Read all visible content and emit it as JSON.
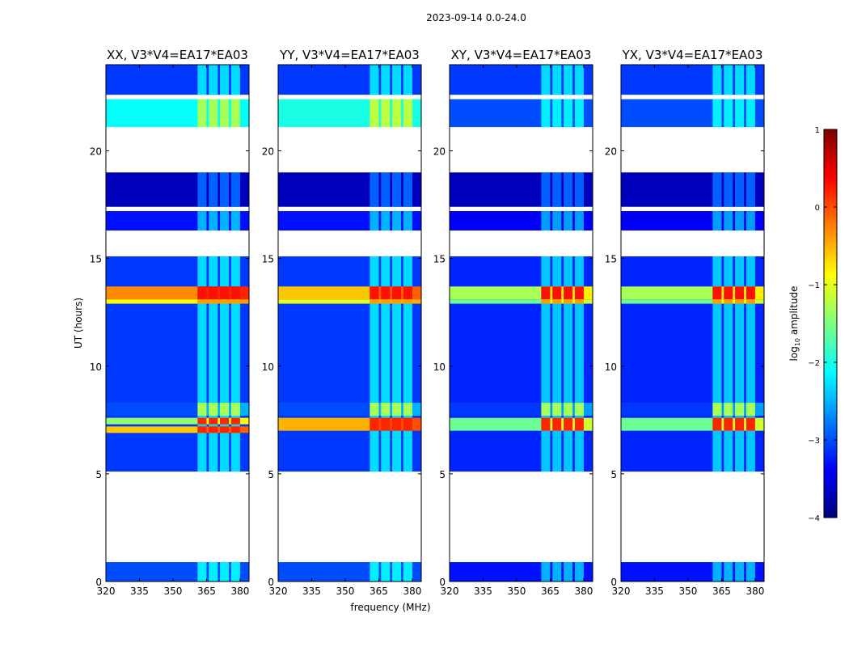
{
  "figure_title": "2023-09-14 0.0-24.0",
  "colorbar": {
    "label_prefix": "log",
    "label_sub": "10",
    "label_suffix": " amplitude",
    "range": [
      -4,
      1
    ],
    "ticks": [
      1,
      0,
      -1,
      -2,
      -3,
      -4
    ],
    "tick_labels": [
      "1",
      "0",
      "−1",
      "−2",
      "−3",
      "−4"
    ],
    "colormap": "jet",
    "colors": [
      "#00007f",
      "#0000ff",
      "#007fff",
      "#00ffff",
      "#7fff7f",
      "#ffff00",
      "#ff7f00",
      "#ff0000",
      "#7f0000"
    ]
  },
  "chart_data": [
    {
      "type": "heatmap",
      "title": "XX, V3*V4=EA17*EA03",
      "xlabel": "",
      "ylabel": "UT (hours)",
      "xlim": [
        320,
        384
      ],
      "ylim": [
        0,
        24
      ],
      "xticks": [
        320,
        335,
        350,
        365,
        380
      ],
      "xtick_labels": [
        "320",
        "335",
        "350",
        "365",
        "380"
      ],
      "yticks": [
        0,
        5,
        10,
        15,
        20
      ],
      "ytick_labels": [
        "0",
        "5",
        "10",
        "15",
        "20"
      ],
      "channel_columns_mhz": [
        [
          361,
          365
        ],
        [
          366,
          370
        ],
        [
          371,
          375
        ],
        [
          376,
          380
        ]
      ],
      "bands": [
        {
          "t0": 0.0,
          "t1": 0.9,
          "level": -3.0
        },
        {
          "t0": 5.1,
          "t1": 15.1,
          "level": -3.1
        },
        {
          "t0": 16.3,
          "t1": 17.2,
          "level": -3.3
        },
        {
          "t0": 17.4,
          "t1": 19.0,
          "level": -3.7
        },
        {
          "t0": 21.1,
          "t1": 22.4,
          "level": -2.1
        },
        {
          "t0": 22.6,
          "t1": 24.0,
          "level": -3.1
        }
      ],
      "strong_rows": [
        {
          "t0": 13.1,
          "t1": 13.7,
          "level": -0.3,
          "channel_level": 0.3
        },
        {
          "t0": 12.9,
          "t1": 13.1,
          "level": -0.9,
          "channel_level": -0.4
        },
        {
          "t0": 6.9,
          "t1": 7.2,
          "level": -0.6,
          "channel_level": 0.2
        },
        {
          "t0": 7.3,
          "t1": 7.6,
          "level": -1.4,
          "channel_level": 0.2
        },
        {
          "t0": 7.7,
          "t1": 8.3,
          "level": -3.0,
          "channel_level": -1.3
        }
      ],
      "gaps": [
        [
          0.9,
          5.1
        ],
        [
          15.1,
          16.3
        ],
        [
          19.0,
          21.1
        ],
        [
          22.4,
          22.6
        ]
      ]
    },
    {
      "type": "heatmap",
      "title": "YY, V3*V4=EA17*EA03",
      "xlabel": "frequency (MHz)",
      "ylabel": "",
      "xlim": [
        320,
        384
      ],
      "ylim": [
        0,
        24
      ],
      "xticks": [
        320,
        335,
        350,
        365,
        380
      ],
      "xtick_labels": [
        "320",
        "335",
        "350",
        "365",
        "380"
      ],
      "yticks": [
        0,
        5,
        10,
        15,
        20
      ],
      "ytick_labels": [
        "0",
        "5",
        "10",
        "15",
        "20"
      ],
      "channel_columns_mhz": [
        [
          361,
          365
        ],
        [
          366,
          370
        ],
        [
          371,
          375
        ],
        [
          376,
          380
        ]
      ],
      "bands": [
        {
          "t0": 0.0,
          "t1": 0.9,
          "level": -3.0
        },
        {
          "t0": 5.1,
          "t1": 15.1,
          "level": -3.1
        },
        {
          "t0": 16.3,
          "t1": 17.2,
          "level": -3.3
        },
        {
          "t0": 17.4,
          "t1": 19.0,
          "level": -3.7
        },
        {
          "t0": 21.1,
          "t1": 22.4,
          "level": -2.0
        },
        {
          "t0": 22.6,
          "t1": 24.0,
          "level": -3.1
        }
      ],
      "strong_rows": [
        {
          "t0": 13.1,
          "t1": 13.7,
          "level": -0.6,
          "channel_level": 0.3
        },
        {
          "t0": 12.9,
          "t1": 13.1,
          "level": -1.0,
          "channel_level": -0.4
        },
        {
          "t0": 7.0,
          "t1": 7.6,
          "level": -0.5,
          "channel_level": 0.2
        },
        {
          "t0": 7.7,
          "t1": 8.3,
          "level": -3.0,
          "channel_level": -1.3
        }
      ],
      "gaps": [
        [
          0.9,
          5.1
        ],
        [
          15.1,
          16.3
        ],
        [
          19.0,
          21.1
        ],
        [
          22.4,
          22.6
        ]
      ]
    },
    {
      "type": "heatmap",
      "title": "XY, V3*V4=EA17*EA03",
      "xlabel": "",
      "ylabel": "",
      "xlim": [
        320,
        384
      ],
      "ylim": [
        0,
        24
      ],
      "xticks": [
        320,
        335,
        350,
        365,
        380
      ],
      "xtick_labels": [
        "320",
        "335",
        "350",
        "365",
        "380"
      ],
      "yticks": [
        0,
        5,
        10,
        15,
        20
      ],
      "ytick_labels": [
        "0",
        "5",
        "10",
        "15",
        "20"
      ],
      "channel_columns_mhz": [
        [
          361,
          365
        ],
        [
          366,
          370
        ],
        [
          371,
          375
        ],
        [
          376,
          380
        ]
      ],
      "bands": [
        {
          "t0": 0.0,
          "t1": 0.9,
          "level": -3.3
        },
        {
          "t0": 5.1,
          "t1": 15.1,
          "level": -3.2
        },
        {
          "t0": 16.3,
          "t1": 17.2,
          "level": -3.4
        },
        {
          "t0": 17.4,
          "t1": 19.0,
          "level": -3.7
        },
        {
          "t0": 21.1,
          "t1": 22.4,
          "level": -3.0
        },
        {
          "t0": 22.6,
          "t1": 24.0,
          "level": -3.1
        }
      ],
      "strong_rows": [
        {
          "t0": 13.1,
          "t1": 13.7,
          "level": -1.3,
          "channel_level": 0.3
        },
        {
          "t0": 12.9,
          "t1": 13.1,
          "level": -1.6,
          "channel_level": -0.4
        },
        {
          "t0": 7.0,
          "t1": 7.6,
          "level": -1.6,
          "channel_level": 0.2
        },
        {
          "t0": 7.7,
          "t1": 8.3,
          "level": -3.1,
          "channel_level": -1.3
        }
      ],
      "gaps": [
        [
          0.9,
          5.1
        ],
        [
          15.1,
          16.3
        ],
        [
          19.0,
          21.1
        ],
        [
          22.4,
          22.6
        ]
      ]
    },
    {
      "type": "heatmap",
      "title": "YX, V3*V4=EA17*EA03",
      "xlabel": "",
      "ylabel": "",
      "xlim": [
        320,
        384
      ],
      "ylim": [
        0,
        24
      ],
      "xticks": [
        320,
        335,
        350,
        365,
        380
      ],
      "xtick_labels": [
        "320",
        "335",
        "350",
        "365",
        "380"
      ],
      "yticks": [
        0,
        5,
        10,
        15,
        20
      ],
      "ytick_labels": [
        "0",
        "5",
        "10",
        "15",
        "20"
      ],
      "channel_columns_mhz": [
        [
          361,
          365
        ],
        [
          366,
          370
        ],
        [
          371,
          375
        ],
        [
          376,
          380
        ]
      ],
      "bands": [
        {
          "t0": 0.0,
          "t1": 0.9,
          "level": -3.3
        },
        {
          "t0": 5.1,
          "t1": 15.1,
          "level": -3.2
        },
        {
          "t0": 16.3,
          "t1": 17.2,
          "level": -3.4
        },
        {
          "t0": 17.4,
          "t1": 19.0,
          "level": -3.7
        },
        {
          "t0": 21.1,
          "t1": 22.4,
          "level": -3.0
        },
        {
          "t0": 22.6,
          "t1": 24.0,
          "level": -3.1
        }
      ],
      "strong_rows": [
        {
          "t0": 13.1,
          "t1": 13.7,
          "level": -1.3,
          "channel_level": 0.3
        },
        {
          "t0": 12.9,
          "t1": 13.1,
          "level": -1.6,
          "channel_level": -0.4
        },
        {
          "t0": 7.0,
          "t1": 7.6,
          "level": -1.6,
          "channel_level": 0.2
        },
        {
          "t0": 7.7,
          "t1": 8.3,
          "level": -3.1,
          "channel_level": -1.3
        }
      ],
      "gaps": [
        [
          0.9,
          5.1
        ],
        [
          15.1,
          16.3
        ],
        [
          19.0,
          21.1
        ],
        [
          22.4,
          22.6
        ]
      ]
    }
  ]
}
